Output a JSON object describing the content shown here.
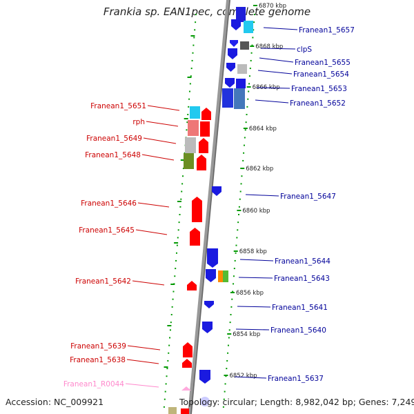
{
  "title": "Frankia sp. EAN1pec, complete genome",
  "accession": "Accession: NC_009921",
  "topology": "Topology: circular; Length: 8,982,042 bp; Genes: 7,249",
  "colors": {
    "forward_strand": "#ff0000",
    "reverse_strand": "#0000ff",
    "backbone": "#888888",
    "right_label": "#000099",
    "left_label": "#cc0000",
    "rna_label": "#ff88cc",
    "tick_dots": "#009900"
  },
  "ticks": [
    "6870 kbp",
    "6868 kbp",
    "6866 kbp",
    "6864 kbp",
    "6862 kbp",
    "6860 kbp",
    "6858 kbp",
    "6856 kbp",
    "6854 kbp",
    "6852 kbp"
  ],
  "right_genes": [
    "Franean1_5657",
    "clpS",
    "Franean1_5655",
    "Franean1_5654",
    "Franean1_5653",
    "Franean1_5652",
    "Franean1_5647",
    "Franean1_5644",
    "Franean1_5643",
    "Franean1_5641",
    "Franean1_5640",
    "Franean1_5637"
  ],
  "left_genes": [
    "Franean1_5651",
    "rph",
    "Franean1_5649",
    "Franean1_5648",
    "Franean1_5646",
    "Franean1_5645",
    "Franean1_5642",
    "Franean1_5639",
    "Franean1_5638",
    "Franean1_R0044"
  ]
}
